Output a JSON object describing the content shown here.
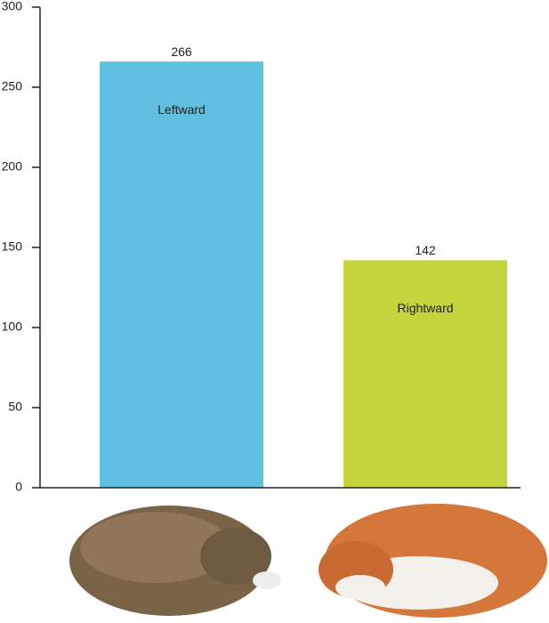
{
  "chart_data": {
    "type": "bar",
    "categories": [
      "Leftward",
      "Rightward"
    ],
    "values": [
      266,
      142
    ],
    "colors": [
      "#5fc0e0",
      "#c5d43c"
    ],
    "ylim": [
      0,
      300
    ],
    "yticks": [
      0,
      50,
      100,
      150,
      200,
      250,
      300
    ]
  }
}
